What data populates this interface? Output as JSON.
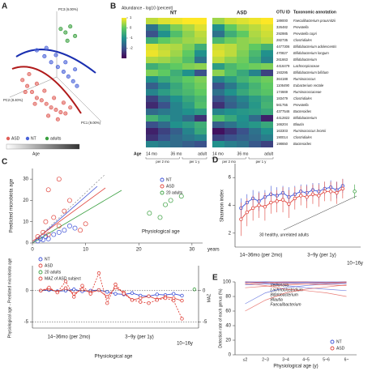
{
  "chart_data": [
    {
      "type": "scatter",
      "panel": "A",
      "marker": "filled",
      "axis_labels": [
        "PC3 (6.00%)",
        "PC2 (8.40%)",
        "PC1 (9.00%)"
      ],
      "color_label": "Age",
      "xlim": [
        0,
        100
      ],
      "ylim": [
        0,
        100
      ],
      "series": [
        {
          "name": "ASD",
          "color": "#e0605a",
          "x": [
            15,
            20,
            25,
            30,
            35,
            40,
            45,
            50,
            55,
            60,
            22,
            30,
            38,
            48,
            58,
            65,
            18,
            28,
            42,
            52
          ],
          "y": [
            45,
            40,
            35,
            30,
            28,
            25,
            22,
            20,
            18,
            17,
            50,
            42,
            36,
            30,
            26,
            22,
            35,
            25,
            15,
            12
          ]
        },
        {
          "name": "NT",
          "color": "#4a63d8",
          "x": [
            30,
            38,
            45,
            52,
            58,
            63,
            68,
            72,
            40,
            50,
            60,
            70
          ],
          "y": [
            70,
            65,
            60,
            56,
            52,
            48,
            44,
            40,
            72,
            66,
            60,
            54
          ]
        },
        {
          "name": "adults",
          "color": "#3aa040",
          "x": [
            55,
            60,
            65,
            70,
            62
          ],
          "y": [
            88,
            85,
            90,
            82,
            78
          ]
        }
      ]
    },
    {
      "type": "heatmap",
      "panel": "B",
      "colormap": "viridis",
      "colorbar_label": "Abundance - log10 (percent)",
      "clim": [
        -3,
        1
      ],
      "cticks": [
        -2,
        -1,
        0,
        1
      ],
      "groups": [
        "NT",
        "ASD"
      ],
      "age_label": "Age",
      "age_labels": [
        "14 mo",
        "36 mo",
        "adult"
      ],
      "period_labels": [
        "per 2 mo",
        "per 1 y"
      ],
      "headers": [
        "OTU ID",
        "Taxonomic annotation"
      ],
      "otu_ids": [
        "189000",
        "326482",
        "292985",
        "282735",
        "4477306",
        "470827",
        "261663",
        "4416479",
        "193295",
        "364188",
        "1106490",
        "174669",
        "183479",
        "561755",
        "4377546",
        "4412822",
        "166204",
        "163303",
        "190014",
        "198650"
      ],
      "taxa": [
        "Faecalibacterium prausnitzii",
        "Prevotella",
        "Prevotella copri",
        "Clostridiales",
        "Bifidobacterium adolescentis",
        "Bifidobacterium longum",
        "Bifidobacterium",
        "Lachnospiraceae",
        "Bifidobacterium bifidum",
        "Ruminococcus",
        "Eubacterium rectale",
        "Ruminococcaceae",
        "Clostridiales",
        "Prevotella",
        "Bacteroides",
        "Bifidobacterium",
        "Blautia",
        "Ruminococcus bromii",
        "Clostridiales",
        "Bacteroides"
      ],
      "values": [
        [
          0.6,
          0.8,
          0.9,
          1.0,
          1.0,
          0.4,
          0.7,
          0.8,
          0.9,
          1.0
        ],
        [
          -1.5,
          -0.5,
          0.2,
          0.5,
          0.8,
          -1.0,
          0.0,
          0.4,
          0.6,
          0.8
        ],
        [
          -2.0,
          -1.0,
          -0.2,
          0.3,
          0.6,
          -1.5,
          -0.5,
          0.0,
          0.5,
          0.7
        ],
        [
          -0.5,
          0.0,
          0.2,
          0.4,
          0.5,
          -0.3,
          0.1,
          0.3,
          0.4,
          0.6
        ],
        [
          0.8,
          0.6,
          0.5,
          0.2,
          -0.5,
          0.7,
          0.6,
          0.3,
          0.0,
          -0.4
        ],
        [
          0.9,
          0.7,
          0.4,
          0.0,
          -1.0,
          0.8,
          0.6,
          0.2,
          -0.3,
          -1.0
        ],
        [
          0.5,
          0.4,
          0.2,
          -0.2,
          -1.5,
          0.6,
          0.3,
          0.1,
          -0.5,
          -1.2
        ],
        [
          -0.5,
          -0.2,
          0.0,
          0.2,
          0.3,
          -0.8,
          -0.3,
          0.0,
          0.1,
          0.2
        ],
        [
          0.2,
          0.0,
          -0.5,
          -1.0,
          -2.0,
          0.3,
          -0.2,
          -0.6,
          -1.2,
          -2.2
        ],
        [
          -1.0,
          -0.6,
          -0.3,
          0.0,
          0.2,
          -1.2,
          -0.8,
          -0.4,
          -0.1,
          0.1
        ],
        [
          -1.8,
          -1.2,
          -0.6,
          -0.2,
          0.1,
          -2.0,
          -1.4,
          -0.8,
          -0.4,
          0.0
        ],
        [
          -1.2,
          -0.8,
          -0.5,
          -0.3,
          0.0,
          -1.5,
          -1.0,
          -0.6,
          -0.3,
          -0.1
        ],
        [
          -2.2,
          -1.5,
          -1.0,
          -0.6,
          -0.3,
          -2.0,
          -1.6,
          -1.2,
          -0.8,
          -0.5
        ],
        [
          -2.5,
          -2.0,
          -1.2,
          -0.8,
          -0.2,
          -2.4,
          -1.8,
          -1.4,
          -0.9,
          -0.4
        ],
        [
          -1.6,
          -1.4,
          -1.2,
          -1.0,
          -0.8,
          -1.2,
          -1.0,
          -0.9,
          -0.8,
          -0.6
        ],
        [
          -0.4,
          -0.8,
          -1.2,
          -1.6,
          -2.4,
          -0.2,
          -0.6,
          -1.0,
          -1.6,
          -2.6
        ],
        [
          -2.0,
          -1.6,
          -1.0,
          -0.8,
          -0.5,
          -1.8,
          -1.5,
          -1.1,
          -0.9,
          -0.6
        ],
        [
          -2.6,
          -2.2,
          -1.8,
          -1.2,
          -0.6,
          -2.8,
          -2.4,
          -2.0,
          -1.5,
          -1.0
        ],
        [
          -2.4,
          -2.0,
          -1.6,
          -1.4,
          -1.2,
          -2.2,
          -2.0,
          -1.8,
          -1.6,
          -1.3
        ],
        [
          -1.2,
          -1.4,
          -1.6,
          -1.8,
          -2.0,
          -1.0,
          -1.3,
          -1.5,
          -1.9,
          -2.2
        ]
      ]
    },
    {
      "type": "scatter",
      "panel": "C",
      "marker": "open",
      "x_label": "Physiological age",
      "x_unit": "years",
      "y_label": "Predicted microbiota age",
      "xlim": [
        0,
        32
      ],
      "xticks": [
        0,
        10,
        20,
        30
      ],
      "ylim": [
        0,
        35
      ],
      "yticks": [
        0,
        10,
        20,
        30
      ],
      "series": [
        {
          "name": "NT",
          "color": "#3b4fd6",
          "x": [
            1,
            1.5,
            2,
            2.5,
            3,
            4,
            5,
            6,
            7,
            8
          ],
          "y": [
            1,
            2,
            1.5,
            3,
            2,
            4,
            5,
            6,
            8,
            7
          ]
        },
        {
          "name": "ASD",
          "color": "#e0443c",
          "x": [
            1,
            2,
            2.5,
            3,
            4,
            5,
            6,
            7,
            9,
            10,
            3,
            5
          ],
          "y": [
            3,
            5,
            10,
            4,
            12,
            8,
            15,
            20,
            6,
            9,
            25,
            30
          ]
        },
        {
          "name": "20 adults",
          "color": "#3aa040",
          "x": [
            22,
            24,
            25,
            26,
            28
          ],
          "y": [
            14,
            12,
            18,
            20,
            22
          ]
        }
      ]
    },
    {
      "type": "line",
      "markers": true,
      "grid": true,
      "y_label": "Physiological age - Predicted microbiota age",
      "y2_label": "MAZ",
      "x_label": "Physiological age",
      "period_labels": [
        "14~36mo (per 2mo)",
        "3~9y (per 1y)",
        "10~16y"
      ],
      "xlim": [
        0,
        20
      ],
      "ylim": [
        -6,
        4
      ],
      "yticks": [
        -5,
        0
      ],
      "y2lim": [
        -6,
        4
      ],
      "y2ticks": [
        -5,
        0
      ],
      "series": [
        {
          "name": "NT",
          "color": "#3b4fd6",
          "x": [
            1,
            2,
            3,
            4,
            5,
            6,
            7,
            8,
            9,
            10,
            11,
            12,
            13,
            14,
            15,
            16,
            17,
            18
          ],
          "values": [
            0,
            0.1,
            -0.1,
            0,
            0.2,
            -0.1,
            0,
            0.1,
            -0.2,
            -0.5,
            -0.6,
            -0.4,
            -0.8,
            -0.9,
            -0.6,
            -0.7,
            -0.5,
            -0.8
          ]
        },
        {
          "name": "ASD",
          "color": "#e0443c",
          "x": [
            1,
            2,
            3,
            4,
            5,
            6,
            7,
            8,
            9,
            10,
            11,
            12,
            13,
            14,
            15,
            16,
            17,
            18
          ],
          "values": [
            0,
            0.3,
            -0.2,
            0.4,
            -0.5,
            0.2,
            -0.3,
            0.1,
            -1,
            0.5,
            -0.3,
            -1.5,
            -1.2,
            -0.9,
            -1.4,
            -1,
            -1.2,
            -1.6
          ]
        },
        {
          "name": "20 adults",
          "color": "#3aa040",
          "x": [
            19.5
          ],
          "values": [
            0.2
          ]
        },
        {
          "name": "MAZ of ASD subject",
          "color": "#e0443c",
          "axis": "y2",
          "dash": true,
          "x": [
            1,
            2,
            3,
            4,
            5,
            6,
            7,
            8,
            9,
            10,
            11,
            12,
            13,
            14,
            15,
            16,
            17,
            18
          ],
          "values": [
            0,
            0.5,
            -0.3,
            1.5,
            -1,
            0.8,
            -0.5,
            2.8,
            -2,
            1,
            -0.5,
            -1.5,
            -1.8,
            -2,
            -1.5,
            -1.2,
            -1.6,
            -4.5
          ]
        }
      ]
    },
    {
      "type": "line",
      "panel": "D",
      "markers": true,
      "y_label": "Shannon index",
      "annotation": "30 healthy, unrelated adults",
      "period_labels": [
        "14~36mo (per 2mo)",
        "3~9y (per 1y)",
        "10~16y"
      ],
      "xlim": [
        0,
        21
      ],
      "ylim": [
        1,
        7
      ],
      "yticks": [
        2,
        4,
        6
      ],
      "series": [
        {
          "name": "NT",
          "color": "#3b4fd6",
          "x": [
            1,
            2,
            3,
            4,
            5,
            6,
            7,
            8,
            9,
            10,
            11,
            12,
            13,
            14,
            15,
            16,
            17,
            18
          ],
          "values": [
            3.8,
            4.2,
            4.5,
            4.3,
            4.6,
            4.8,
            4.7,
            4.9,
            4.6,
            4.8,
            5.0,
            4.9,
            5.1,
            5.0,
            5.2,
            5.3,
            5.1,
            5.4
          ],
          "errors": [
            0.7,
            0.6,
            0.6,
            0.7,
            0.5,
            0.6,
            0.6,
            0.5,
            0.7,
            0.6,
            0.5,
            0.6,
            0.5,
            0.6,
            0.5,
            0.5,
            0.6,
            0.5
          ]
        },
        {
          "name": "ASD",
          "color": "#e0443c",
          "x": [
            1,
            2,
            3,
            4,
            5,
            6,
            7,
            8,
            9,
            10,
            11,
            12,
            13,
            14,
            15,
            16,
            17,
            18
          ],
          "values": [
            3.0,
            3.5,
            3.8,
            4.0,
            3.9,
            4.2,
            4.3,
            4.4,
            4.1,
            4.5,
            4.7,
            4.6,
            4.8,
            4.7,
            5.0,
            5.0,
            4.9,
            5.2
          ],
          "errors": [
            1.2,
            1.0,
            0.9,
            0.9,
            1.0,
            0.8,
            0.8,
            0.9,
            1.0,
            0.8,
            0.7,
            0.8,
            0.7,
            0.8,
            0.7,
            0.7,
            0.8,
            0.7
          ]
        },
        {
          "name": "adults",
          "color": "#3aa040",
          "x": [
            20
          ],
          "values": [
            5.0
          ],
          "errors": [
            0.5
          ]
        }
      ]
    },
    {
      "type": "line",
      "panel": "E",
      "y_label": "Detection rate of each genus (%)",
      "x_label": "Physiological age (y)",
      "categories": [
        "≤2",
        "2~3",
        "3~4",
        "4~5",
        "5~6",
        "6~"
      ],
      "ylim": [
        0,
        100
      ],
      "yticks": [
        0,
        20,
        40,
        60,
        80,
        100
      ],
      "series": [
        {
          "name": "NT",
          "color": "#3b4fd6",
          "lines": [
            {
              "label": "Veillonella",
              "values": [
                100,
                98,
                95,
                92,
                90,
                88
              ]
            },
            {
              "label": "Lachnoclostridium",
              "values": [
                96,
                97,
                98,
                99,
                99,
                100
              ]
            },
            {
              "label": "Bifidobacterium",
              "values": [
                100,
                100,
                99,
                99,
                98,
                98
              ]
            },
            {
              "label": "Blautia",
              "values": [
                99,
                100,
                100,
                100,
                100,
                100
              ]
            },
            {
              "label": "Faecalibacterium",
              "values": [
                70,
                85,
                92,
                95,
                97,
                98
              ]
            }
          ]
        },
        {
          "name": "ASD",
          "color": "#e0443c",
          "lines": [
            {
              "values": [
                98,
                95,
                90,
                88,
                85,
                80
              ]
            },
            {
              "values": [
                92,
                94,
                96,
                97,
                98,
                99
              ]
            },
            {
              "values": [
                100,
                99,
                98,
                97,
                96,
                95
              ]
            },
            {
              "values": [
                97,
                99,
                100,
                100,
                99,
                100
              ]
            },
            {
              "values": [
                60,
                75,
                85,
                90,
                93,
                96
              ]
            }
          ]
        }
      ]
    }
  ]
}
